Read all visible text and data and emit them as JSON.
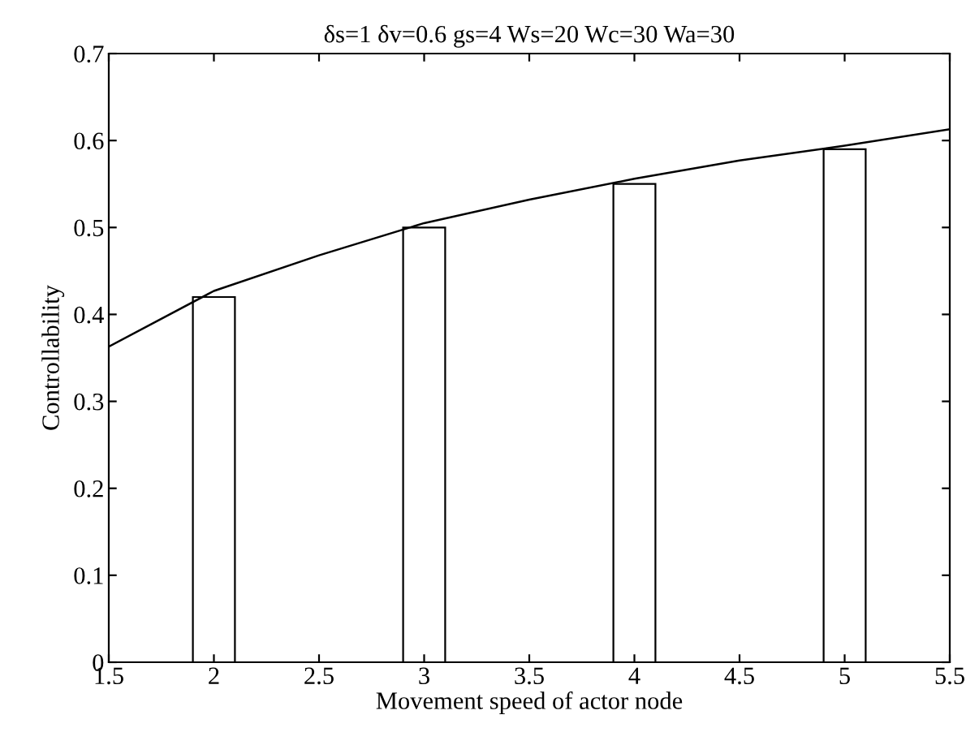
{
  "chart_data": {
    "type": "bar",
    "title": "δs=1 δv=0.6 gs=4 Ws=20 Wc=30 Wa=30",
    "xlabel": "Movement speed of actor node",
    "ylabel": "Controllability",
    "xlim": [
      1.5,
      5.5
    ],
    "ylim": [
      0,
      0.7
    ],
    "xticks": [
      1.5,
      2,
      2.5,
      3,
      3.5,
      4,
      4.5,
      5,
      5.5
    ],
    "yticks": [
      0,
      0.1,
      0.2,
      0.3,
      0.4,
      0.5,
      0.6,
      0.7
    ],
    "grid": false,
    "legend": false,
    "series": [
      {
        "color": "#ffffff",
        "x": [
          2,
          3,
          4,
          5
        ],
        "values": [
          0.42,
          0.5,
          0.55,
          0.59
        ]
      },
      {
        "type": "line",
        "color": "#000000",
        "marker": "none",
        "line_style": "solid",
        "x": [
          1.5,
          2,
          2.5,
          3,
          3.5,
          4,
          4.5,
          5,
          5.5
        ],
        "values": [
          0.363,
          0.427,
          0.468,
          0.505,
          0.532,
          0.556,
          0.577,
          0.594,
          0.613
        ]
      }
    ]
  }
}
